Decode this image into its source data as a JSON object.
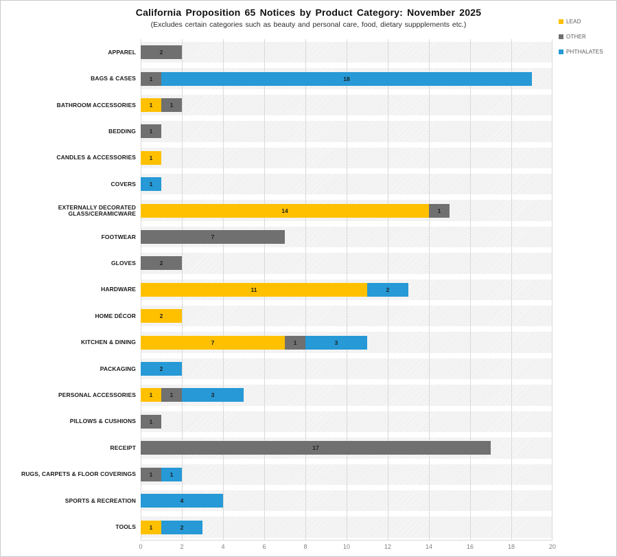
{
  "chart_data": {
    "type": "bar",
    "orientation": "horizontal",
    "stacked": true,
    "title": "California Proposition 65 Notices by Product Category: November 2025",
    "subtitle": "(Excludes certain categories such as beauty and personal care, food, dietary suppplements etc.)",
    "legend_position": "top-right",
    "value_labels": "inside segments",
    "grid": "vertical gridlines every 2 units",
    "xlim": [
      0,
      20
    ],
    "xticks": [
      "0",
      "2",
      "4",
      "6",
      "8",
      "10",
      "12",
      "14",
      "16",
      "18",
      "20"
    ],
    "categories": [
      "APPAREL",
      "BAGS & CASES",
      "BATHROOM ACCESSORIES",
      "BEDDING",
      "CANDLES & ACCESSORIES",
      "COVERS",
      "EXTERNALLY DECORATED GLASS/CERAMICWARE",
      "FOOTWEAR",
      "GLOVES",
      "HARDWARE",
      "HOME DÉCOR",
      "KITCHEN & DINING",
      "PACKAGING",
      "PERSONAL ACCESSORIES",
      "PILLOWS & CUSHIONS",
      "RECEIPT",
      "RUGS, CARPETS & FLOOR COVERINGS",
      "SPORTS & RECREATION",
      "TOOLS"
    ],
    "series": [
      {
        "name": "LEAD",
        "color": "#FFC000",
        "values": [
          0,
          0,
          1,
          0,
          1,
          0,
          14,
          0,
          0,
          11,
          2,
          7,
          0,
          1,
          0,
          0,
          0,
          0,
          1
        ]
      },
      {
        "name": "OTHER",
        "color": "#707070",
        "values": [
          2,
          1,
          1,
          1,
          0,
          0,
          1,
          7,
          2,
          0,
          0,
          1,
          0,
          1,
          1,
          17,
          1,
          0,
          0
        ]
      },
      {
        "name": "PHTHALATES",
        "color": "#2699D6",
        "values": [
          0,
          18,
          0,
          0,
          0,
          1,
          0,
          0,
          0,
          2,
          0,
          3,
          2,
          3,
          0,
          0,
          1,
          4,
          2
        ]
      }
    ]
  }
}
